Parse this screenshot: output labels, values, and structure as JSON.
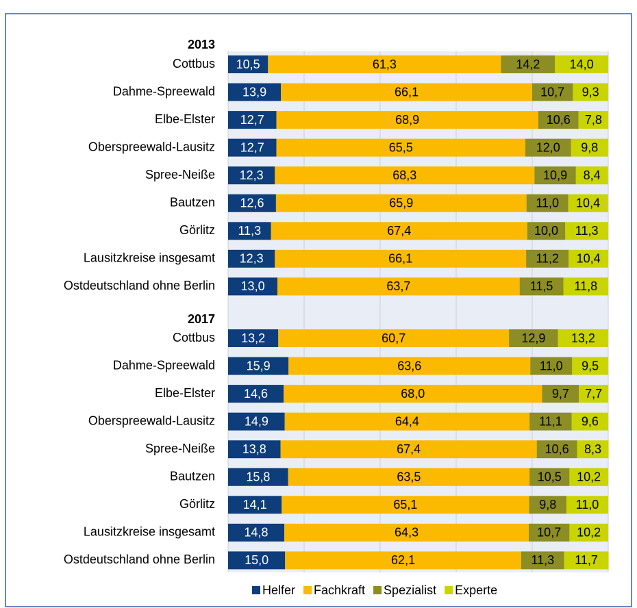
{
  "chart_data": {
    "type": "stacked-bar-horizontal",
    "groups": [
      "2013",
      "2017"
    ],
    "categories": [
      "Cottbus",
      "Dahme-Spreewald",
      "Elbe-Elster",
      "Oberspreewald-Lausitz",
      "Spree-Neiße",
      "Bautzen",
      "Görlitz",
      "Lausitzkreise insgesamt",
      "Ostdeutschland ohne Berlin",
      "Cottbus",
      "Dahme-Spreewald",
      "Elbe-Elster",
      "Oberspreewald-Lausitz",
      "Spree-Neiße",
      "Bautzen",
      "Görlitz",
      "Lausitzkreise insgesamt",
      "Ostdeutschland ohne Berlin"
    ],
    "series": [
      {
        "name": "Helfer",
        "color": "#0e3d7b",
        "label_color": "#ffffff",
        "values": [
          10.5,
          13.9,
          12.7,
          12.7,
          12.3,
          12.6,
          11.3,
          12.3,
          13.0,
          13.2,
          15.9,
          14.6,
          14.9,
          13.8,
          15.8,
          14.1,
          14.8,
          15.0
        ],
        "value_labels": [
          "10,5",
          "13,9",
          "12,7",
          "12,7",
          "12,3",
          "12,6",
          "11,3",
          "12,3",
          "13,0",
          "13,2",
          "15,9",
          "14,6",
          "14,9",
          "13,8",
          "15,8",
          "14,1",
          "14,8",
          "15,0"
        ]
      },
      {
        "name": "Fachkraft",
        "color": "#fbb900",
        "label_color": "#000000",
        "values": [
          61.3,
          66.1,
          68.9,
          65.5,
          68.3,
          65.9,
          67.4,
          66.1,
          63.7,
          60.7,
          63.6,
          68.0,
          64.4,
          67.4,
          63.5,
          65.1,
          64.3,
          62.1
        ],
        "value_labels": [
          "61,3",
          "66,1",
          "68,9",
          "65,5",
          "68,3",
          "65,9",
          "67,4",
          "66,1",
          "63,7",
          "60,7",
          "63,6",
          "68,0",
          "64,4",
          "67,4",
          "63,5",
          "65,1",
          "64,3",
          "62,1"
        ]
      },
      {
        "name": "Spezialist",
        "color": "#8c8d25",
        "label_color": "#000000",
        "values": [
          14.2,
          10.7,
          10.6,
          12.0,
          10.9,
          11.0,
          10.0,
          11.2,
          11.5,
          12.9,
          11.0,
          9.7,
          11.1,
          10.6,
          10.5,
          9.8,
          10.7,
          11.3
        ],
        "value_labels": [
          "14,2",
          "10,7",
          "10,6",
          "12,0",
          "10,9",
          "11,0",
          "10,0",
          "11,2",
          "11,5",
          "12,9",
          "11,0",
          "9,7",
          "11,1",
          "10,6",
          "10,5",
          "9,8",
          "10,7",
          "11,3"
        ]
      },
      {
        "name": "Experte",
        "color": "#c9d400",
        "label_color": "#000000",
        "values": [
          14.0,
          9.3,
          7.8,
          9.8,
          8.4,
          10.4,
          11.3,
          10.4,
          11.8,
          13.2,
          9.5,
          7.7,
          9.6,
          8.3,
          10.2,
          11.0,
          10.2,
          11.7
        ],
        "value_labels": [
          "14,0",
          "9,3",
          "7,8",
          "9,8",
          "8,4",
          "10,4",
          "11,3",
          "10,4",
          "11,8",
          "13,2",
          "9,5",
          "7,7",
          "9,6",
          "8,3",
          "10,2",
          "11,0",
          "10,2",
          "11,7"
        ]
      }
    ],
    "xlim": [
      0,
      100
    ],
    "xticks": [
      0,
      20,
      40,
      60,
      80,
      100
    ],
    "grid": true,
    "legend": "bottom"
  }
}
